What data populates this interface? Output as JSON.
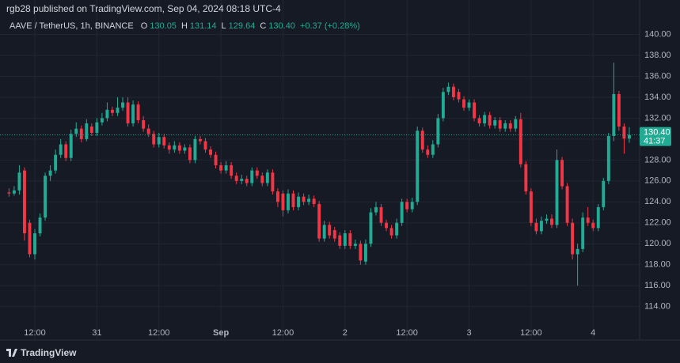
{
  "header": {
    "published": "rgb28 published on TradingView.com, Sep 04, 2024 08:18 UTC-4",
    "symbol": "AAVE / TetherUS, 1h, BINANCE",
    "ohlc": [
      {
        "label": "O",
        "value": "130.05"
      },
      {
        "label": "H",
        "value": "131.14"
      },
      {
        "label": "L",
        "value": "129.64"
      },
      {
        "label": "C",
        "value": "130.40"
      }
    ],
    "change": "+0.37 (+0.28%)"
  },
  "footer": {
    "brand": "TradingView"
  },
  "chart_data": {
    "type": "candlestick",
    "up_color": "#22ab94",
    "down_color": "#f23645",
    "grid": true,
    "xlim": [
      -1.74,
      122
    ],
    "ylim": [
      110.8,
      141.4
    ],
    "xticks": [
      {
        "value": 5,
        "label": "12:00"
      },
      {
        "value": 17,
        "label": "31"
      },
      {
        "value": 29,
        "label": "12:00"
      },
      {
        "value": 41,
        "label": "Sep"
      },
      {
        "value": 53,
        "label": "12:00"
      },
      {
        "value": 65,
        "label": "2"
      },
      {
        "value": 77,
        "label": "12:00"
      },
      {
        "value": 89,
        "label": "3"
      },
      {
        "value": 101,
        "label": "12:00"
      },
      {
        "value": 113,
        "label": "4"
      }
    ],
    "yticks": [
      {
        "value": 114,
        "label": "114.00"
      },
      {
        "value": 116,
        "label": "116.00"
      },
      {
        "value": 118,
        "label": "118.00"
      },
      {
        "value": 120,
        "label": "120.00"
      },
      {
        "value": 122,
        "label": "122.00"
      },
      {
        "value": 124,
        "label": "124.00"
      },
      {
        "value": 126,
        "label": "126.00"
      },
      {
        "value": 128,
        "label": "128.00"
      },
      {
        "value": 130,
        "label": "130.00"
      },
      {
        "value": 132,
        "label": "132.00"
      },
      {
        "value": 134,
        "label": "134.00"
      },
      {
        "value": 136,
        "label": "136.00"
      },
      {
        "value": 138,
        "label": "138.00"
      },
      {
        "value": 140,
        "label": "140.00"
      }
    ],
    "last_price": {
      "value": 130.4,
      "label": "130.40",
      "countdown": "41:37"
    },
    "open": [
      124.9,
      124.8,
      125.1,
      127.0,
      122.0,
      119.0,
      121.0,
      122.5,
      126.5,
      127.0,
      128.5,
      129.5,
      128.2,
      130.5,
      131.0,
      130.0,
      131.2,
      130.6,
      131.6,
      132.0,
      132.8,
      132.5,
      133.0,
      133.5,
      131.5,
      133.3,
      131.8,
      131.0,
      130.5,
      129.5,
      130.2,
      129.4,
      129.0,
      129.4,
      128.9,
      129.2,
      128.0,
      130.0,
      129.8,
      129.0,
      128.5,
      127.5,
      127.0,
      127.5,
      126.5,
      126.0,
      126.2,
      125.8,
      127.0,
      126.5,
      125.8,
      126.8,
      125.0,
      124.8,
      123.2,
      124.8,
      123.5,
      124.5,
      124.0,
      124.3,
      123.8,
      120.5,
      121.8,
      121.3,
      120.8,
      119.8,
      121.0,
      119.8,
      120.0,
      118.3,
      120.0,
      123.0,
      123.5,
      122.0,
      121.5,
      120.8,
      122.0,
      124.0,
      123.3,
      124.0,
      130.8,
      129.0,
      128.5,
      129.5,
      132.0,
      134.5,
      135.0,
      134.5,
      133.8,
      133.0,
      133.5,
      132.0,
      131.5,
      132.3,
      131.3,
      131.8,
      131.0,
      131.5,
      131.0,
      131.9,
      127.6,
      125.0,
      122.0,
      121.2,
      122.2,
      122.4,
      121.8,
      128.0,
      125.5,
      122.0,
      119.0,
      119.5,
      122.5,
      122.0,
      121.5,
      123.5,
      126.0,
      130.3,
      134.3,
      131.2,
      130.05
    ],
    "high": [
      125.3,
      125.5,
      127.5,
      127.3,
      122.3,
      121.4,
      122.9,
      126.8,
      127.5,
      129.0,
      130.0,
      129.8,
      130.9,
      131.6,
      131.3,
      131.9,
      131.5,
      132.0,
      132.5,
      133.5,
      133.1,
      134.0,
      134.0,
      134.0,
      133.7,
      133.6,
      132.2,
      131.4,
      130.8,
      130.6,
      130.5,
      129.7,
      129.8,
      129.7,
      129.5,
      129.5,
      130.3,
      130.3,
      130.1,
      129.3,
      128.8,
      127.8,
      127.9,
      127.8,
      126.8,
      126.6,
      126.5,
      127.3,
      127.3,
      126.8,
      127.1,
      127.1,
      125.3,
      125.1,
      125.2,
      125.1,
      124.9,
      124.8,
      124.7,
      124.6,
      124.1,
      122.2,
      122.1,
      121.6,
      121.1,
      121.3,
      121.3,
      120.4,
      120.3,
      120.4,
      123.4,
      124.0,
      123.8,
      122.3,
      121.8,
      122.4,
      124.3,
      124.3,
      124.4,
      131.2,
      131.1,
      129.4,
      129.9,
      132.4,
      134.9,
      135.4,
      135.3,
      134.8,
      134.1,
      133.8,
      133.8,
      132.3,
      132.6,
      132.6,
      132.1,
      132.1,
      131.8,
      131.8,
      132.2,
      132.5,
      127.9,
      125.3,
      122.4,
      122.6,
      122.8,
      122.8,
      129.0,
      128.3,
      125.8,
      122.4,
      120.0,
      123.0,
      123.5,
      122.3,
      123.8,
      126.3,
      130.6,
      137.3,
      134.6,
      131.5,
      131.14
    ],
    "low": [
      124.5,
      124.6,
      124.7,
      120.3,
      118.7,
      118.5,
      120.7,
      122.2,
      126.0,
      126.7,
      128.2,
      127.9,
      127.9,
      130.2,
      129.7,
      129.8,
      130.3,
      130.3,
      131.3,
      131.7,
      132.2,
      132.2,
      132.7,
      131.2,
      131.2,
      131.5,
      130.7,
      130.2,
      129.2,
      129.2,
      129.1,
      128.6,
      128.7,
      128.6,
      128.6,
      127.7,
      127.7,
      129.5,
      128.7,
      128.2,
      127.2,
      126.7,
      126.7,
      126.2,
      125.7,
      125.7,
      125.5,
      125.5,
      126.2,
      125.5,
      125.5,
      124.7,
      123.5,
      122.6,
      122.9,
      123.2,
      123.2,
      123.7,
      123.7,
      123.5,
      120.2,
      120.2,
      120.5,
      120.2,
      119.5,
      119.5,
      119.5,
      119.5,
      118.0,
      118.0,
      119.7,
      122.7,
      121.7,
      121.2,
      120.5,
      120.5,
      121.7,
      123.0,
      123.0,
      123.7,
      128.7,
      128.2,
      128.2,
      129.2,
      131.7,
      134.2,
      133.7,
      133.5,
      132.7,
      132.7,
      131.7,
      131.2,
      131.2,
      131.0,
      131.0,
      130.7,
      130.7,
      130.7,
      130.7,
      127.3,
      124.7,
      121.7,
      120.9,
      120.9,
      121.9,
      121.5,
      121.5,
      125.2,
      121.7,
      118.5,
      116.0,
      119.2,
      121.7,
      121.2,
      121.2,
      123.2,
      125.7,
      129.8,
      130.8,
      128.6,
      129.64
    ],
    "close": [
      124.8,
      125.1,
      126.8,
      121.0,
      119.0,
      121.0,
      122.5,
      126.5,
      127.0,
      128.5,
      129.5,
      128.2,
      130.5,
      131.0,
      130.0,
      131.5,
      130.6,
      131.6,
      132.0,
      132.8,
      132.5,
      133.0,
      133.5,
      131.5,
      133.3,
      131.8,
      131.0,
      130.5,
      129.5,
      130.2,
      129.4,
      129.0,
      129.4,
      128.9,
      129.2,
      128.0,
      130.0,
      129.8,
      129.0,
      128.5,
      127.5,
      127.0,
      127.5,
      126.5,
      126.0,
      126.2,
      125.8,
      127.0,
      126.5,
      125.8,
      126.8,
      125.0,
      124.0,
      123.2,
      124.8,
      123.5,
      124.5,
      124.0,
      124.3,
      123.8,
      120.5,
      121.8,
      120.8,
      120.5,
      119.8,
      121.0,
      119.8,
      120.0,
      118.4,
      120.0,
      123.0,
      123.5,
      122.0,
      121.5,
      120.8,
      122.0,
      124.0,
      123.3,
      124.0,
      130.8,
      129.0,
      128.5,
      129.5,
      132.0,
      134.5,
      135.0,
      134.0,
      133.8,
      133.0,
      133.5,
      132.0,
      131.5,
      132.3,
      131.3,
      131.8,
      131.0,
      131.5,
      131.0,
      131.9,
      127.6,
      125.0,
      122.0,
      121.2,
      122.2,
      122.4,
      121.8,
      128.0,
      125.5,
      122.0,
      119.0,
      119.5,
      122.5,
      122.0,
      121.5,
      123.5,
      126.0,
      130.3,
      134.3,
      131.2,
      130.05,
      130.4
    ]
  }
}
